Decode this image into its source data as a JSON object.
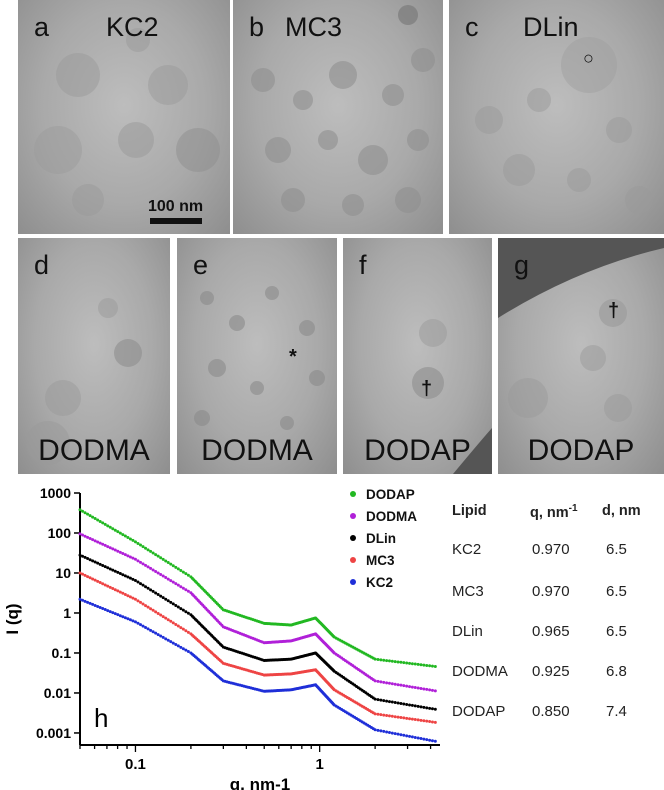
{
  "figure": {
    "panels": [
      {
        "id": "a",
        "label": "a",
        "title": "KC2",
        "bottom": ""
      },
      {
        "id": "b",
        "label": "b",
        "title": "MC3",
        "bottom": ""
      },
      {
        "id": "c",
        "label": "c",
        "title": "DLin",
        "bottom": ""
      },
      {
        "id": "d",
        "label": "d",
        "title": "",
        "bottom": "DODMA"
      },
      {
        "id": "e",
        "label": "e",
        "title": "",
        "bottom": "DODMA"
      },
      {
        "id": "f",
        "label": "f",
        "title": "",
        "bottom": "DODAP"
      },
      {
        "id": "g",
        "label": "g",
        "title": "",
        "bottom": "DODAP"
      }
    ],
    "scale_bar": "100 nm",
    "markers": {
      "c": "○",
      "e": "*",
      "f": "†",
      "g": "†"
    }
  },
  "chart_data": {
    "type": "scatter",
    "panel_label": "h",
    "xlabel": "q, nm-1",
    "ylabel": "I (q)",
    "xscale": "log",
    "yscale": "log",
    "xlim": [
      0.05,
      4.5
    ],
    "ylim": [
      0.0005,
      1000
    ],
    "xticks": [
      "0.1",
      "1"
    ],
    "yticks": [
      "1000",
      "100",
      "10",
      "1",
      "0.1",
      "0.01",
      "0.001"
    ],
    "legend_position": "top-right",
    "series": [
      {
        "name": "DODAP",
        "color": "#22b822",
        "points": [
          [
            0.05,
            380
          ],
          [
            0.1,
            60
          ],
          [
            0.2,
            8
          ],
          [
            0.3,
            1.2
          ],
          [
            0.5,
            0.55
          ],
          [
            0.7,
            0.5
          ],
          [
            0.95,
            0.75
          ],
          [
            1.2,
            0.25
          ],
          [
            2,
            0.07
          ],
          [
            4.4,
            0.045
          ]
        ]
      },
      {
        "name": "DODMA",
        "color": "#b020d8",
        "points": [
          [
            0.05,
            95
          ],
          [
            0.1,
            22
          ],
          [
            0.2,
            3.2
          ],
          [
            0.3,
            0.45
          ],
          [
            0.5,
            0.18
          ],
          [
            0.7,
            0.2
          ],
          [
            0.95,
            0.3
          ],
          [
            1.2,
            0.1
          ],
          [
            2,
            0.02
          ],
          [
            4.4,
            0.011
          ]
        ]
      },
      {
        "name": "DLin",
        "color": "#000000",
        "points": [
          [
            0.05,
            28
          ],
          [
            0.1,
            6.5
          ],
          [
            0.2,
            0.9
          ],
          [
            0.3,
            0.14
          ],
          [
            0.5,
            0.065
          ],
          [
            0.7,
            0.07
          ],
          [
            0.95,
            0.1
          ],
          [
            1.2,
            0.035
          ],
          [
            2,
            0.007
          ],
          [
            4.4,
            0.0038
          ]
        ]
      },
      {
        "name": "MC3",
        "color": "#ee4444",
        "points": [
          [
            0.05,
            10
          ],
          [
            0.1,
            2.2
          ],
          [
            0.2,
            0.3
          ],
          [
            0.3,
            0.055
          ],
          [
            0.5,
            0.028
          ],
          [
            0.7,
            0.03
          ],
          [
            0.95,
            0.038
          ],
          [
            1.2,
            0.012
          ],
          [
            2,
            0.003
          ],
          [
            4.4,
            0.0018
          ]
        ]
      },
      {
        "name": "KC2",
        "color": "#1f2fd8",
        "points": [
          [
            0.05,
            2.2
          ],
          [
            0.1,
            0.6
          ],
          [
            0.2,
            0.1
          ],
          [
            0.3,
            0.02
          ],
          [
            0.5,
            0.011
          ],
          [
            0.7,
            0.012
          ],
          [
            0.95,
            0.016
          ],
          [
            1.2,
            0.005
          ],
          [
            2,
            0.0012
          ],
          [
            4.4,
            0.0006
          ]
        ]
      }
    ]
  },
  "lipid_table": {
    "headers": [
      "Lipid",
      "q, nm",
      "d, nm"
    ],
    "header_sup": "-1",
    "rows": [
      [
        "KC2",
        "0.970",
        "6.5"
      ],
      [
        "MC3",
        "0.970",
        "6.5"
      ],
      [
        "DLin",
        "0.965",
        "6.5"
      ],
      [
        "DODMA",
        "0.925",
        "6.8"
      ],
      [
        "DODAP",
        "0.850",
        "7.4"
      ]
    ]
  }
}
